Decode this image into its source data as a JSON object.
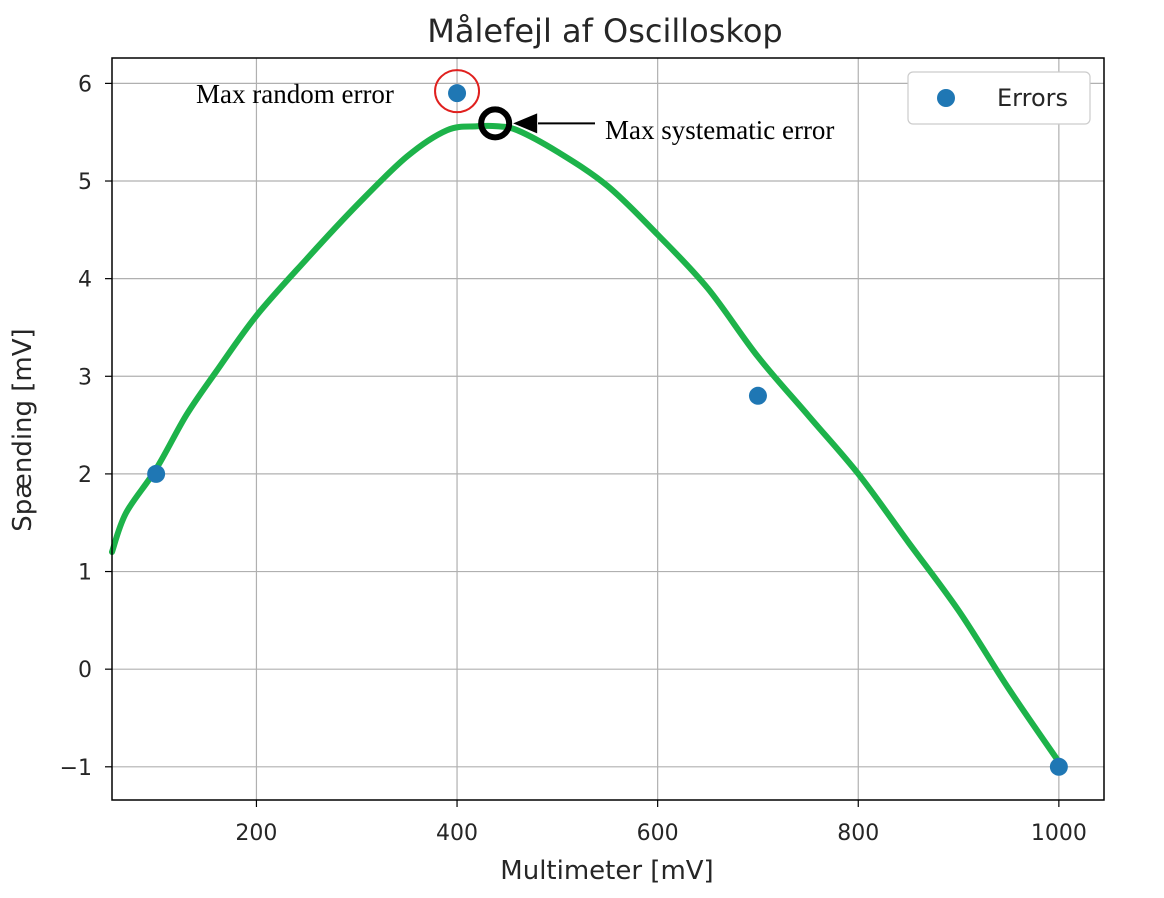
{
  "chart_data": {
    "type": "scatter",
    "title": "Målefejl af Oscilloskop",
    "xlabel": "Multimeter [mV]",
    "ylabel": "Spænding [mV]",
    "xlim": [
      56,
      1045
    ],
    "ylim": [
      -1.34,
      6.26
    ],
    "x_ticks": [
      200,
      400,
      600,
      800,
      1000
    ],
    "x_tick_labels": [
      "200",
      "400",
      "600",
      "800",
      "1000"
    ],
    "y_ticks": [
      -1,
      0,
      1,
      2,
      3,
      4,
      5,
      6
    ],
    "y_tick_labels": [
      "−1",
      "0",
      "1",
      "2",
      "3",
      "4",
      "5",
      "6"
    ],
    "grid": true,
    "legend_position": "top-right",
    "series": [
      {
        "name": "Errors",
        "type": "scatter",
        "color": "#1f77b4",
        "x": [
          100,
          400,
          700,
          1000
        ],
        "y": [
          2.0,
          5.9,
          2.8,
          -1.0
        ]
      }
    ],
    "trend_curve": {
      "color": "#1db34a",
      "x": [
        56,
        70,
        100,
        130,
        160,
        200,
        250,
        300,
        350,
        390,
        420,
        440,
        460,
        500,
        550,
        600,
        650,
        700,
        750,
        800,
        850,
        900,
        950,
        1000
      ],
      "y": [
        1.2,
        1.6,
        2.05,
        2.6,
        3.05,
        3.62,
        4.2,
        4.75,
        5.25,
        5.52,
        5.56,
        5.56,
        5.52,
        5.3,
        4.95,
        4.45,
        3.9,
        3.2,
        2.6,
        2.0,
        1.3,
        0.6,
        -0.2,
        -0.95
      ]
    },
    "annotations": [
      {
        "text": "Max random error",
        "marker": "red-circle",
        "x": 400,
        "y": 5.9
      },
      {
        "text": "Max systematic error",
        "marker": "black-circle-arrow",
        "x": 438,
        "y": 5.56
      }
    ]
  }
}
